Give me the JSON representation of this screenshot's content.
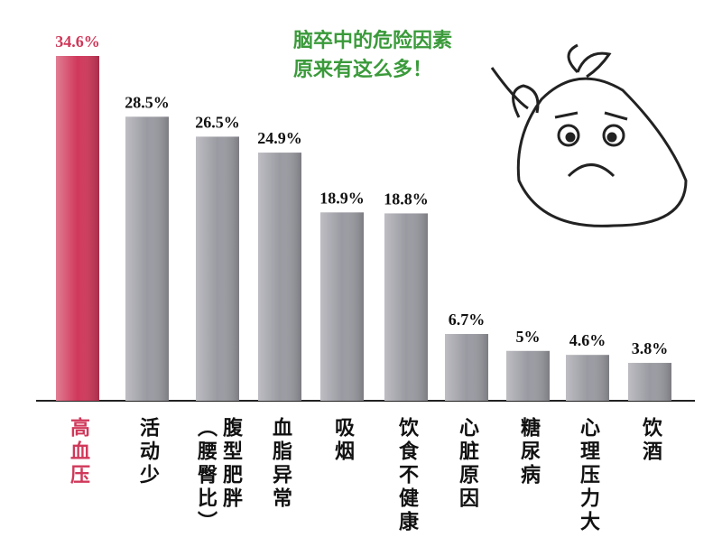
{
  "chart_data": {
    "type": "bar",
    "annotation": [
      "脑卒中的危险因素",
      "原来有这么多！"
    ],
    "categories": [
      "高血压",
      "活动少",
      "腹型肥胖\n（腰臀比）",
      "血脂异常",
      "吸烟",
      "饮食不健康",
      "心脏原因",
      "糖尿病",
      "心理压力大",
      "饮酒"
    ],
    "values": [
      34.6,
      28.5,
      26.5,
      24.9,
      18.9,
      18.8,
      6.7,
      5,
      4.6,
      3.8
    ],
    "value_labels": [
      "34.6%",
      "28.5%",
      "26.5%",
      "24.9%",
      "18.9%",
      "18.8%",
      "6.7%",
      "5%",
      "4.6%",
      "3.8%"
    ],
    "colors": [
      "#d0385a",
      "#9a9aa2",
      "#9a9aa2",
      "#9a9aa2",
      "#9a9aa2",
      "#9a9aa2",
      "#9a9aa2",
      "#9a9aa2",
      "#9a9aa2",
      "#9a9aa2"
    ]
  }
}
